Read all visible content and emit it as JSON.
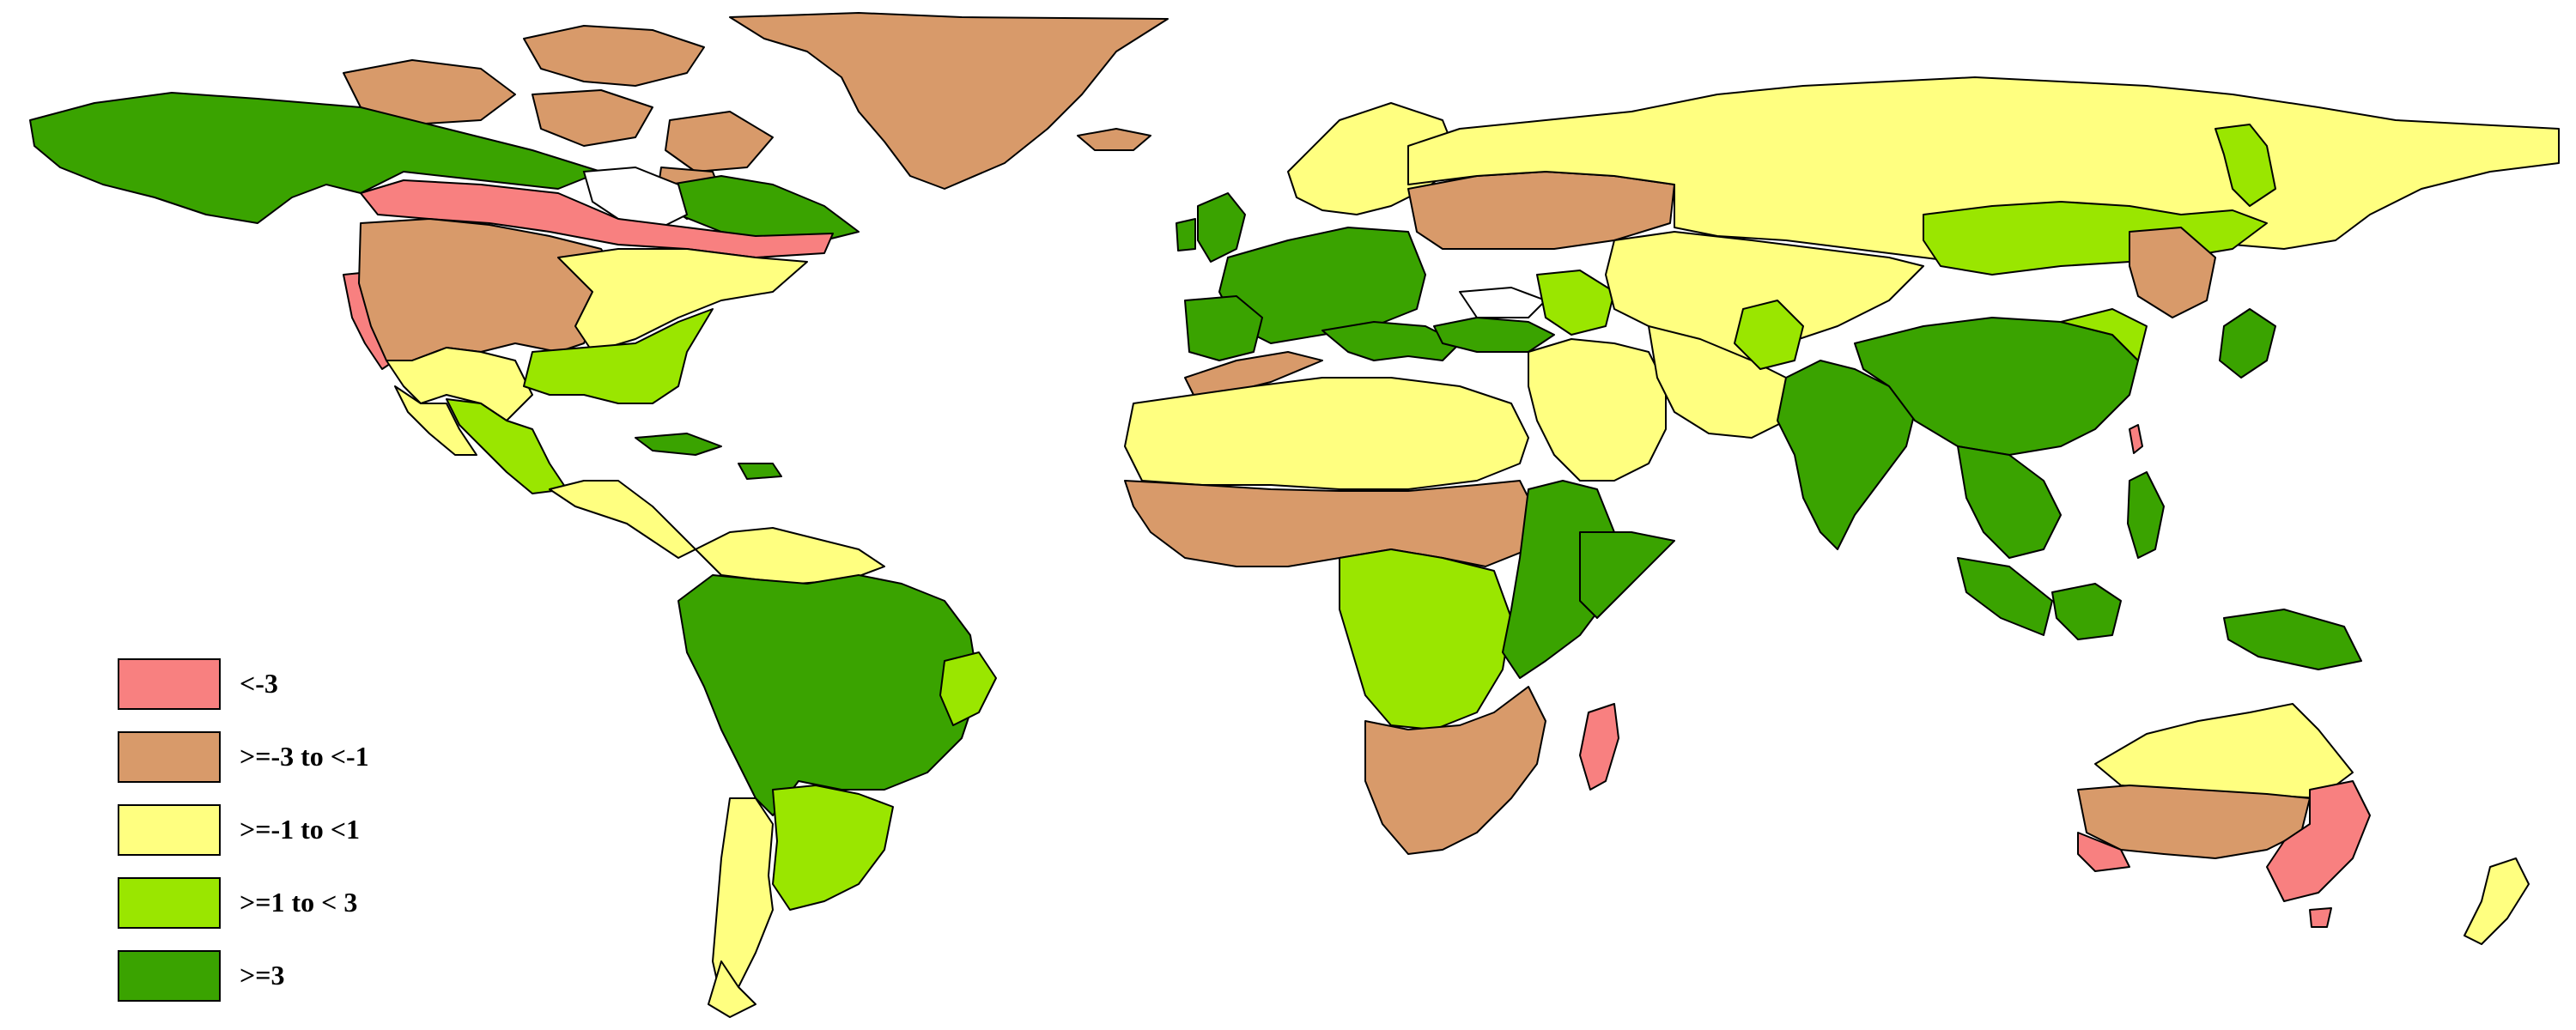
{
  "map": {
    "colors": {
      "ocean": "#ffffff",
      "lt_neg3": "#f88080",
      "neg3_to_neg1": "#d89a6a",
      "neg1_to_1": "#ffff80",
      "1_to_3": "#9ae600",
      "gte_3": "#3aa300"
    }
  },
  "legend": {
    "items": [
      {
        "label": "<-3",
        "color": "#f88080"
      },
      {
        "label": ">=-3 to <-1",
        "color": "#d89a6a"
      },
      {
        "label": ">=-1 to <1",
        "color": "#ffff80"
      },
      {
        "label": ">=1 to < 3",
        "color": "#9ae600"
      },
      {
        "label": ">=3",
        "color": "#3aa300"
      }
    ]
  }
}
